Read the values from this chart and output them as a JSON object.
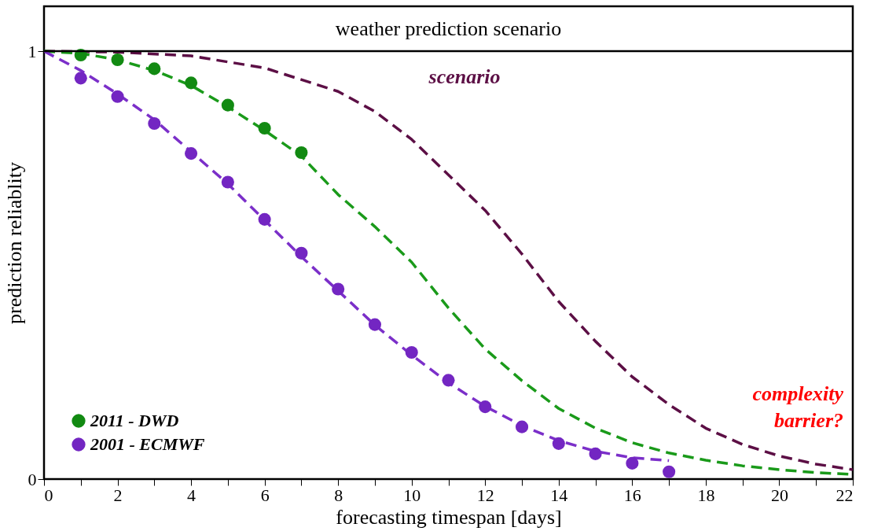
{
  "chart_data": {
    "type": "scatter",
    "title": "weather prediction scenario",
    "xlabel": "forecasting timespan [days]",
    "ylabel": "prediction reliablity",
    "xlim": [
      0,
      22
    ],
    "ylim": [
      0,
      1.105
    ],
    "xticks": [
      0,
      {
        "value": 1,
        "label": null
      },
      2,
      {
        "value": 3,
        "label": null
      },
      4,
      {
        "value": 5,
        "label": null
      },
      6,
      {
        "value": 7,
        "label": null
      },
      8,
      {
        "value": 9,
        "label": null
      },
      10,
      {
        "value": 11,
        "label": null
      },
      12,
      {
        "value": 13,
        "label": null
      },
      14,
      {
        "value": 15,
        "label": null
      },
      16,
      {
        "value": 17,
        "label": null
      },
      18,
      {
        "value": 19,
        "label": null
      },
      20,
      {
        "value": 21,
        "label": null
      },
      22
    ],
    "yticks": [
      0,
      1
    ],
    "grid": false,
    "legend": "bottom left",
    "ref_lines": [
      {
        "axis": "y",
        "value": 1,
        "color": "#000000",
        "line_style": "solid"
      }
    ],
    "series": [
      {
        "type": "line",
        "line_style": "dashed",
        "marker": "none",
        "color": "#5c0f45",
        "x": [
          0,
          2,
          4,
          6,
          8,
          9,
          10,
          11,
          12,
          13,
          14,
          15,
          16,
          17,
          18,
          19,
          20,
          21,
          22
        ],
        "values": [
          1,
          0.998,
          0.989,
          0.961,
          0.906,
          0.859,
          0.794,
          0.711,
          0.628,
          0.526,
          0.415,
          0.322,
          0.239,
          0.174,
          0.119,
          0.081,
          0.054,
          0.035,
          0.022
        ]
      },
      {
        "type": "line",
        "line_style": "dashed",
        "marker": "none",
        "color": "#1a9a1a",
        "x": [
          0,
          1,
          2,
          3,
          4,
          5,
          6,
          7,
          8,
          9,
          10,
          11,
          12,
          13,
          14,
          15,
          16,
          17,
          18,
          19,
          20,
          21,
          22
        ],
        "values": [
          1,
          0.995,
          0.98,
          0.955,
          0.92,
          0.87,
          0.815,
          0.755,
          0.665,
          0.59,
          0.507,
          0.4,
          0.304,
          0.23,
          0.165,
          0.119,
          0.085,
          0.061,
          0.044,
          0.031,
          0.022,
          0.015,
          0.011
        ]
      },
      {
        "type": "line",
        "line_style": "dashed",
        "marker": "none",
        "color": "#7b2fc9",
        "x": [
          0,
          1,
          2,
          3,
          4,
          5,
          6,
          7,
          8,
          9,
          10,
          11,
          12,
          13,
          14,
          15,
          16,
          17
        ],
        "values": [
          1,
          0.955,
          0.9,
          0.84,
          0.765,
          0.69,
          0.605,
          0.52,
          0.44,
          0.36,
          0.29,
          0.225,
          0.17,
          0.125,
          0.09,
          0.065,
          0.05,
          0.043
        ]
      },
      {
        "marker": "circle",
        "name": "2011 - DWD",
        "color": "#128a12",
        "x": [
          1,
          2,
          3,
          4,
          5,
          6,
          7
        ],
        "values": [
          0.991,
          0.98,
          0.959,
          0.926,
          0.874,
          0.82,
          0.763
        ]
      },
      {
        "marker": "circle",
        "name": "2001 - ECMWF",
        "color": "#7326c2",
        "x": [
          1,
          2,
          3,
          4,
          5,
          6,
          7,
          8,
          9,
          10,
          11,
          12,
          13,
          14,
          15,
          16,
          17
        ],
        "values": [
          0.937,
          0.894,
          0.831,
          0.761,
          0.694,
          0.607,
          0.528,
          0.444,
          0.361,
          0.296,
          0.231,
          0.169,
          0.122,
          0.083,
          0.059,
          0.037,
          0.017
        ]
      }
    ],
    "annotations": [
      "scenario",
      "complexity\nbarrier?"
    ]
  }
}
